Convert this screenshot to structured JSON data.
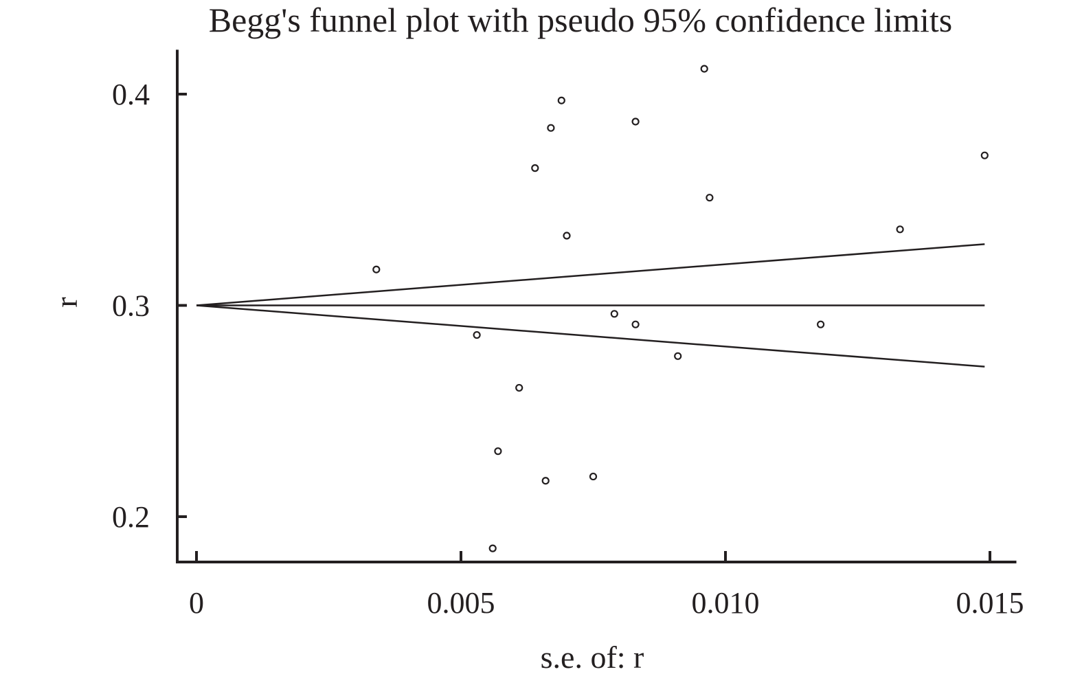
{
  "chart_data": {
    "type": "scatter",
    "title": "Begg's funnel plot with pseudo 95% confidence limits",
    "xlabel": "s.e. of: r",
    "ylabel": "r",
    "x_ticks": [
      {
        "value": 0,
        "label": "0"
      },
      {
        "value": 0.005,
        "label": "0.005"
      },
      {
        "value": 0.01,
        "label": "0.010"
      },
      {
        "value": 0.015,
        "label": "0.015"
      }
    ],
    "y_ticks": [
      {
        "value": 0.2,
        "label": "0.2"
      },
      {
        "value": 0.3,
        "label": "0.3"
      },
      {
        "value": 0.4,
        "label": "0.4"
      }
    ],
    "xlim": [
      -0.0004,
      0.0155
    ],
    "ylim": [
      0.179,
      0.421
    ],
    "pooled_estimate": 0.3,
    "se_max": 0.0149,
    "lower_limit_at_se_max": 0.271,
    "upper_limit_at_se_max": 0.329,
    "grid": false,
    "points": [
      {
        "se": 0.0034,
        "r": 0.317
      },
      {
        "se": 0.0053,
        "r": 0.286
      },
      {
        "se": 0.0056,
        "r": 0.185
      },
      {
        "se": 0.0057,
        "r": 0.231
      },
      {
        "se": 0.0061,
        "r": 0.261
      },
      {
        "se": 0.0064,
        "r": 0.365
      },
      {
        "se": 0.0066,
        "r": 0.217
      },
      {
        "se": 0.0067,
        "r": 0.384
      },
      {
        "se": 0.0069,
        "r": 0.397
      },
      {
        "se": 0.007,
        "r": 0.333
      },
      {
        "se": 0.0075,
        "r": 0.219
      },
      {
        "se": 0.0079,
        "r": 0.296
      },
      {
        "se": 0.0083,
        "r": 0.291
      },
      {
        "se": 0.0083,
        "r": 0.387
      },
      {
        "se": 0.0091,
        "r": 0.276
      },
      {
        "se": 0.0096,
        "r": 0.412
      },
      {
        "se": 0.0097,
        "r": 0.351
      },
      {
        "se": 0.0118,
        "r": 0.291
      },
      {
        "se": 0.0133,
        "r": 0.336
      },
      {
        "se": 0.0149,
        "r": 0.371
      }
    ]
  }
}
